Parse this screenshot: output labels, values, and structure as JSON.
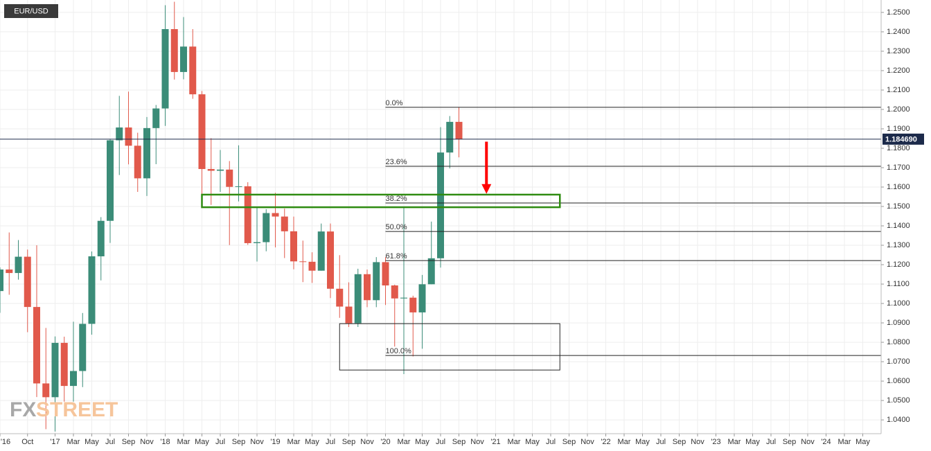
{
  "chart_data": {
    "type": "candlestick",
    "symbol": "EUR/USD",
    "x": [
      "2016-07",
      "2016-08",
      "2016-09",
      "2016-10",
      "2016-11",
      "2016-12",
      "2017-01",
      "2017-02",
      "2017-03",
      "2017-04",
      "2017-05",
      "2017-06",
      "2017-07",
      "2017-08",
      "2017-09",
      "2017-10",
      "2017-11",
      "2017-12",
      "2018-01",
      "2018-02",
      "2018-03",
      "2018-04",
      "2018-05",
      "2018-06",
      "2018-07",
      "2018-08",
      "2018-09",
      "2018-10",
      "2018-11",
      "2018-12",
      "2019-01",
      "2019-02",
      "2019-03",
      "2019-04",
      "2019-05",
      "2019-06",
      "2019-07",
      "2019-08",
      "2019-09",
      "2019-10",
      "2019-11",
      "2019-12",
      "2020-01",
      "2020-02",
      "2020-03",
      "2020-04",
      "2020-05",
      "2020-06",
      "2020-07",
      "2020-08",
      "2020-09"
    ],
    "open": [
      1.1064,
      1.1175,
      1.1157,
      1.1241,
      1.0982,
      1.0588,
      1.0517,
      1.0797,
      1.0575,
      1.0652,
      1.0895,
      1.1243,
      1.1426,
      1.1841,
      1.1907,
      1.1813,
      1.1645,
      1.1904,
      1.2005,
      1.2414,
      1.2193,
      1.2324,
      1.2078,
      1.1693,
      1.1684,
      1.169,
      1.1601,
      1.1604,
      1.1311,
      1.1316,
      1.1466,
      1.1448,
      1.1372,
      1.1217,
      1.1215,
      1.1169,
      1.1371,
      1.1076,
      1.0984,
      1.0898,
      1.1151,
      1.1017,
      1.1213,
      1.1093,
      1.1026,
      1.103,
      1.0954,
      1.1099,
      1.1233,
      1.1778,
      1.1936
    ],
    "high": [
      1.1186,
      1.1366,
      1.1327,
      1.1278,
      1.13,
      1.0874,
      1.083,
      1.0829,
      1.0906,
      1.0951,
      1.1268,
      1.1445,
      1.1846,
      1.207,
      1.2092,
      1.188,
      1.1961,
      1.2023,
      1.2537,
      1.2555,
      1.2476,
      1.2414,
      1.2095,
      1.1852,
      1.1791,
      1.1734,
      1.1815,
      1.1625,
      1.15,
      1.1486,
      1.157,
      1.1489,
      1.1448,
      1.1324,
      1.1264,
      1.1412,
      1.1412,
      1.1249,
      1.1109,
      1.1179,
      1.1175,
      1.1239,
      1.1239,
      1.1097,
      1.1496,
      1.104,
      1.1147,
      1.1422,
      1.1909,
      1.1966,
      1.2011
    ],
    "low": [
      1.0952,
      1.1045,
      1.1123,
      1.0852,
      1.0518,
      1.0352,
      1.034,
      1.0494,
      1.0494,
      1.0569,
      1.0839,
      1.1119,
      1.1312,
      1.1662,
      1.1717,
      1.1575,
      1.1554,
      1.1718,
      1.1915,
      1.2154,
      1.2155,
      1.2055,
      1.151,
      1.1508,
      1.1575,
      1.1301,
      1.1526,
      1.1302,
      1.1216,
      1.1269,
      1.1289,
      1.1234,
      1.1176,
      1.111,
      1.1106,
      1.1169,
      1.1028,
      1.0926,
      1.0879,
      1.0879,
      1.0981,
      1.0981,
      1.0992,
      1.0778,
      1.0636,
      1.0727,
      1.0767,
      1.1099,
      1.1185,
      1.1696,
      1.1753
    ],
    "close": [
      1.1175,
      1.1157,
      1.1241,
      1.0982,
      1.0588,
      1.0517,
      1.0797,
      1.0575,
      1.0652,
      1.0895,
      1.1243,
      1.1426,
      1.1841,
      1.1907,
      1.1813,
      1.1645,
      1.1904,
      1.2005,
      1.2414,
      1.2193,
      1.2324,
      1.2078,
      1.1693,
      1.1684,
      1.169,
      1.1601,
      1.1604,
      1.1311,
      1.1316,
      1.1466,
      1.1448,
      1.1372,
      1.1217,
      1.1215,
      1.1169,
      1.1371,
      1.1076,
      1.0984,
      1.0898,
      1.1151,
      1.1017,
      1.1213,
      1.1093,
      1.1026,
      1.103,
      1.0954,
      1.1099,
      1.1233,
      1.1778,
      1.1936,
      1.18469
    ],
    "up_color": "#3b8c78",
    "down_color": "#e1594b",
    "xlim": [
      "2016-07",
      "2024-07"
    ],
    "ylim": [
      1.0329,
      1.2564
    ],
    "grid": true,
    "yticks": [
      {
        "value": 1.04,
        "label": "1.0400"
      },
      {
        "value": 1.05,
        "label": "1.0500"
      },
      {
        "value": 1.06,
        "label": "1.0600"
      },
      {
        "value": 1.07,
        "label": "1.0700"
      },
      {
        "value": 1.08,
        "label": "1.0800"
      },
      {
        "value": 1.09,
        "label": "1.0900"
      },
      {
        "value": 1.1,
        "label": "1.1000"
      },
      {
        "value": 1.11,
        "label": "1.1100"
      },
      {
        "value": 1.12,
        "label": "1.1200"
      },
      {
        "value": 1.13,
        "label": "1.1300"
      },
      {
        "value": 1.14,
        "label": "1.1400"
      },
      {
        "value": 1.15,
        "label": "1.1500"
      },
      {
        "value": 1.16,
        "label": "1.1600"
      },
      {
        "value": 1.17,
        "label": "1.1700"
      },
      {
        "value": 1.18,
        "label": "1.1800"
      },
      {
        "value": 1.19,
        "label": "1.1900"
      },
      {
        "value": 1.2,
        "label": "1.2000"
      },
      {
        "value": 1.21,
        "label": "1.2100"
      },
      {
        "value": 1.22,
        "label": "1.2200"
      },
      {
        "value": 1.23,
        "label": "1.2300"
      },
      {
        "value": 1.24,
        "label": "1.2400"
      },
      {
        "value": 1.25,
        "label": "1.2500"
      }
    ],
    "xticks": [
      {
        "value": "2016-07",
        "label": "'16"
      },
      {
        "value": "2016-10",
        "label": "Oct"
      },
      {
        "value": "2017-01",
        "label": "'17"
      },
      {
        "value": "2017-03",
        "label": "Mar"
      },
      {
        "value": "2017-05",
        "label": "May"
      },
      {
        "value": "2017-07",
        "label": "Jul"
      },
      {
        "value": "2017-09",
        "label": "Sep"
      },
      {
        "value": "2017-11",
        "label": "Nov"
      },
      {
        "value": "2018-01",
        "label": "'18"
      },
      {
        "value": "2018-03",
        "label": "Mar"
      },
      {
        "value": "2018-05",
        "label": "May"
      },
      {
        "value": "2018-07",
        "label": "Jul"
      },
      {
        "value": "2018-09",
        "label": "Sep"
      },
      {
        "value": "2018-11",
        "label": "Nov"
      },
      {
        "value": "2019-01",
        "label": "'19"
      },
      {
        "value": "2019-03",
        "label": "Mar"
      },
      {
        "value": "2019-05",
        "label": "May"
      },
      {
        "value": "2019-07",
        "label": "Jul"
      },
      {
        "value": "2019-09",
        "label": "Sep"
      },
      {
        "value": "2019-11",
        "label": "Nov"
      },
      {
        "value": "2020-01",
        "label": "'20"
      },
      {
        "value": "2020-03",
        "label": "Mar"
      },
      {
        "value": "2020-05",
        "label": "May"
      },
      {
        "value": "2020-07",
        "label": "Jul"
      },
      {
        "value": "2020-09",
        "label": "Sep"
      },
      {
        "value": "2020-11",
        "label": "Nov"
      },
      {
        "value": "2021-01",
        "label": "'21"
      },
      {
        "value": "2021-03",
        "label": "Mar"
      },
      {
        "value": "2021-05",
        "label": "May"
      },
      {
        "value": "2021-07",
        "label": "Jul"
      },
      {
        "value": "2021-09",
        "label": "Sep"
      },
      {
        "value": "2021-11",
        "label": "Nov"
      },
      {
        "value": "2022-01",
        "label": "'22"
      },
      {
        "value": "2022-03",
        "label": "Mar"
      },
      {
        "value": "2022-05",
        "label": "May"
      },
      {
        "value": "2022-07",
        "label": "Jul"
      },
      {
        "value": "2022-09",
        "label": "Sep"
      },
      {
        "value": "2022-11",
        "label": "Nov"
      },
      {
        "value": "2023-01",
        "label": "'23"
      },
      {
        "value": "2023-03",
        "label": "Mar"
      },
      {
        "value": "2023-05",
        "label": "May"
      },
      {
        "value": "2023-07",
        "label": "Jul"
      },
      {
        "value": "2023-09",
        "label": "Sep"
      },
      {
        "value": "2023-11",
        "label": "Nov"
      },
      {
        "value": "2024-01",
        "label": "'24"
      },
      {
        "value": "2024-03",
        "label": "Mar"
      },
      {
        "value": "2024-05",
        "label": "May"
      }
    ],
    "last_price": {
      "value": 1.18469,
      "label": "1.184690"
    },
    "fib_start": "2020-01",
    "fib_levels": [
      {
        "label": "0.0%",
        "value": 1.2011
      },
      {
        "label": "23.6%",
        "value": 1.1707
      },
      {
        "label": "38.2%",
        "value": 1.1518
      },
      {
        "label": "50.0%",
        "value": 1.1371
      },
      {
        "label": "61.8%",
        "value": 1.1221
      },
      {
        "label": "100.0%",
        "value": 1.0732
      }
    ],
    "zones": [
      {
        "start": "2018-05",
        "end": "2021-08",
        "top": 1.1561,
        "bottom": 1.1496,
        "color": "#2e8b10"
      },
      {
        "start": "2019-08",
        "end": "2021-08",
        "top": 1.0896,
        "bottom": 1.0657,
        "color": "#222222"
      }
    ],
    "arrow": {
      "x": "2020-12",
      "from": 1.1834,
      "to": 1.1565,
      "color": "#ff0000"
    },
    "watermark": {
      "left": "FX",
      "right": "STREET"
    }
  }
}
